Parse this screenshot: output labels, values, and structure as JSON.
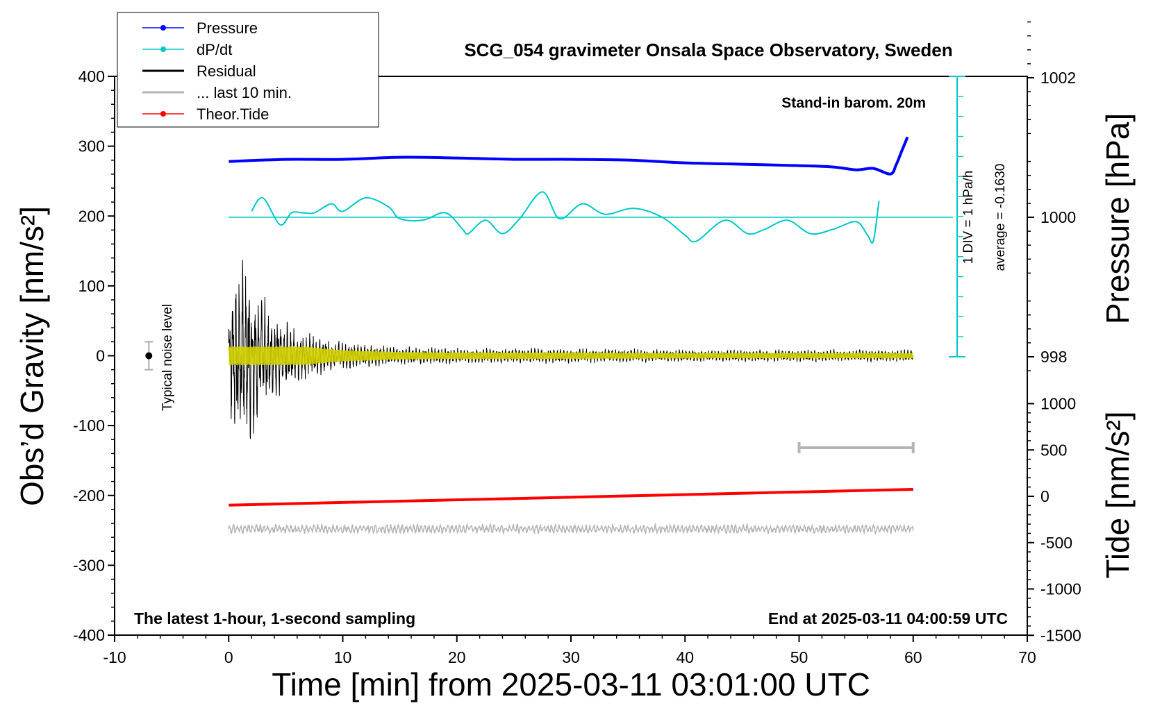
{
  "chart_data": {
    "type": "line",
    "title": "SCG_054 gravimeter Onsala Space Observatory, Sweden",
    "station_note": "Stand-in barom. 20m",
    "bottom_left_note": "The latest 1-hour, 1-second sampling",
    "bottom_right_note": "End at 2025-03-11 04:00:59 UTC",
    "xlabel": "Time [min] from 2025-03-11 03:01:00 UTC",
    "ylabel_left": "Obs’d Gravity [nm/s²]",
    "ylabel_right_top": "Pressure [hPa]",
    "ylabel_right_bottom": "Tide [nm/s²]",
    "noise_label": "Typical noise level",
    "dpdt_scale_label": "1 DIV = 1 hPa/h",
    "dpdt_average_label": "average = -0.1630",
    "xlim": [
      -10,
      70
    ],
    "ylim_left": [
      -400,
      400
    ],
    "x_ticks": [
      "-10",
      "0",
      "10",
      "20",
      "30",
      "40",
      "50",
      "60",
      "70"
    ],
    "y_ticks_left": [
      "400",
      "300",
      "200",
      "100",
      "0",
      "-100",
      "-200",
      "-300",
      "-400"
    ],
    "pressure_ticks": [
      "1002",
      "1000",
      "998"
    ],
    "tide_ticks": [
      "1000",
      "500",
      "0",
      "-500",
      "-1000",
      "-1500"
    ],
    "legend": {
      "position": "top-left",
      "entries": [
        {
          "label": "Pressure",
          "color": "#0000ff",
          "marker": true
        },
        {
          "label": "dP/dt",
          "color": "#00c8c8",
          "marker": true
        },
        {
          "label": "Residual",
          "color": "#000000",
          "marker": false
        },
        {
          "label": "... last 10 min.",
          "color": "#b4b4b4",
          "marker": false
        },
        {
          "label": "Theor.Tide",
          "color": "#ff0000",
          "marker": true
        }
      ]
    },
    "series": [
      {
        "name": "Pressure",
        "unit": "hPa",
        "x": [
          0,
          5,
          10,
          15,
          20,
          25,
          30,
          35,
          40,
          45,
          50,
          53,
          55,
          56.5,
          58,
          58.5,
          59,
          59.5
        ],
        "values": [
          1000.8,
          1000.83,
          1000.83,
          1000.86,
          1000.85,
          1000.83,
          1000.83,
          1000.82,
          1000.78,
          1000.76,
          1000.74,
          1000.72,
          1000.68,
          1000.7,
          1000.62,
          1000.75,
          1000.95,
          1001.15
        ]
      },
      {
        "name": "dP/dt",
        "unit": "hPa/h",
        "x": [
          2,
          3,
          4.5,
          5.5,
          6.5,
          7.5,
          9,
          10,
          12,
          14,
          15,
          17,
          19,
          20.5,
          21,
          22.5,
          24,
          25.5,
          27.5,
          29,
          31,
          33,
          35.5,
          38,
          40,
          41,
          43.5,
          45.5,
          47,
          49,
          51,
          53,
          55,
          56,
          56.5,
          57
        ],
        "values": [
          0.2,
          0.65,
          -0.25,
          0.15,
          0.15,
          0.15,
          0.45,
          0.2,
          0.65,
          0.35,
          -0.05,
          -0.1,
          0.15,
          -0.4,
          -0.55,
          -0.1,
          -0.55,
          -0.05,
          0.85,
          -0.05,
          0.45,
          0.1,
          0.3,
          0.0,
          -0.6,
          -0.8,
          -0.1,
          -0.55,
          -0.4,
          -0.1,
          -0.55,
          -0.4,
          -0.15,
          -0.6,
          -0.8,
          0.55
        ]
      },
      {
        "name": "Residual",
        "unit": "nm/s²",
        "envelope_x": [
          0,
          1,
          2,
          4,
          6,
          8,
          10,
          15,
          20,
          30,
          40,
          50,
          60
        ],
        "envelope_amplitude": [
          70,
          150,
          100,
          60,
          35,
          25,
          18,
          12,
          10,
          10,
          8,
          8,
          8
        ]
      },
      {
        "name": "Theor.Tide",
        "unit": "nm/s²",
        "x": [
          0,
          60
        ],
        "values": [
          -95,
          75
        ]
      },
      {
        "name": "... last 10 min.",
        "x_range": [
          50,
          60
        ]
      }
    ],
    "noise_level": {
      "x": -7,
      "y": 0,
      "error": 20
    }
  }
}
